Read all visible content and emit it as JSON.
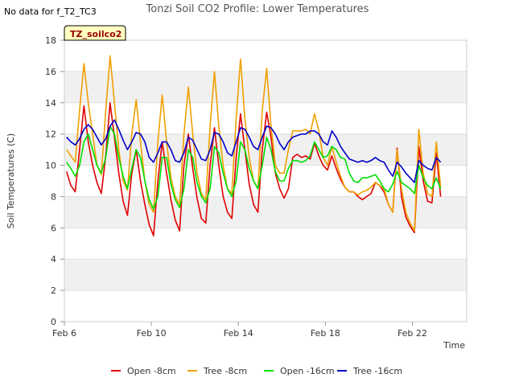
{
  "no_data_note": "No data for f_T2_TC3",
  "chart_data": {
    "type": "line",
    "title": "Tonzi Soil CO2 Profile: Lower Temperatures",
    "xlabel": "Time",
    "ylabel": "Soil Temperatures (C)",
    "badge": "TZ_soilco2",
    "xlim": [
      6.0,
      24.5
    ],
    "ylim": [
      0,
      18
    ],
    "x_ticks": [
      {
        "value": 6,
        "label": "Feb 6"
      },
      {
        "value": 10,
        "label": "Feb 10"
      },
      {
        "value": 14,
        "label": "Feb 14"
      },
      {
        "value": 18,
        "label": "Feb 18"
      },
      {
        "value": 22,
        "label": "Feb 22"
      }
    ],
    "y_ticks": [
      0,
      2,
      4,
      6,
      8,
      10,
      12,
      14,
      16,
      18
    ],
    "grid": true,
    "legend_position": "bottom",
    "colors": {
      "open8": "#e00000",
      "tree8": "#f0a000",
      "open16": "#00e000",
      "tree16": "#0000cc",
      "band": "#f0f0f0",
      "badge_fill": "#ffffc0",
      "badge_text": "#990000"
    },
    "series": [
      {
        "name": "Open -8cm",
        "color": "#e00000",
        "x": [
          6.1,
          6.3,
          6.5,
          6.7,
          6.9,
          7.1,
          7.3,
          7.5,
          7.7,
          7.9,
          8.1,
          8.3,
          8.5,
          8.7,
          8.9,
          9.1,
          9.3,
          9.5,
          9.7,
          9.9,
          10.1,
          10.3,
          10.5,
          10.7,
          10.9,
          11.1,
          11.3,
          11.5,
          11.7,
          11.9,
          12.1,
          12.3,
          12.5,
          12.7,
          12.9,
          13.1,
          13.3,
          13.5,
          13.7,
          13.9,
          14.1,
          14.3,
          14.5,
          14.7,
          14.9,
          15.1,
          15.3,
          15.5,
          15.7,
          15.9,
          16.1,
          16.3,
          16.5,
          16.7,
          16.9,
          17.1,
          17.3,
          17.5,
          17.7,
          17.9,
          18.1,
          18.3,
          18.5,
          18.7,
          18.9,
          19.1,
          19.3,
          19.5,
          19.7,
          19.9,
          20.1,
          20.3,
          20.5,
          20.7,
          20.9,
          21.1,
          21.3,
          21.5,
          21.7,
          21.9,
          22.1,
          22.3,
          22.5,
          22.7,
          22.9,
          23.1,
          23.3
        ],
        "values": [
          9.6,
          8.7,
          8.3,
          11.0,
          13.8,
          11.5,
          10.0,
          8.9,
          8.2,
          10.6,
          14.0,
          11.8,
          9.5,
          7.7,
          6.8,
          9.5,
          11.0,
          9.0,
          7.5,
          6.2,
          5.5,
          9.0,
          11.5,
          9.5,
          7.8,
          6.5,
          5.8,
          10.0,
          12.0,
          9.8,
          7.9,
          6.6,
          6.3,
          10.0,
          12.4,
          10.0,
          8.0,
          7.0,
          6.6,
          10.5,
          13.3,
          11.0,
          8.8,
          7.5,
          7.0,
          11.0,
          13.4,
          11.8,
          9.5,
          8.5,
          7.9,
          8.5,
          10.5,
          10.7,
          10.5,
          10.6,
          10.4,
          11.4,
          10.6,
          10.0,
          9.7,
          10.6,
          9.8,
          9.1,
          8.6,
          8.3,
          8.3,
          8.0,
          7.8,
          8.0,
          8.2,
          8.9,
          8.7,
          8.3,
          7.5,
          7.0,
          11.1,
          8.0,
          6.7,
          6.1,
          5.7,
          11.2,
          9.0,
          7.7,
          7.6,
          10.8,
          8.0
        ]
      },
      {
        "name": "Tree -8cm",
        "color": "#f0a000",
        "x": [
          6.1,
          6.3,
          6.5,
          6.7,
          6.9,
          7.1,
          7.3,
          7.5,
          7.7,
          7.9,
          8.1,
          8.3,
          8.5,
          8.7,
          8.9,
          9.1,
          9.3,
          9.5,
          9.7,
          9.9,
          10.1,
          10.3,
          10.5,
          10.7,
          10.9,
          11.1,
          11.3,
          11.5,
          11.7,
          11.9,
          12.1,
          12.3,
          12.5,
          12.7,
          12.9,
          13.1,
          13.3,
          13.5,
          13.7,
          13.9,
          14.1,
          14.3,
          14.5,
          14.7,
          14.9,
          15.1,
          15.3,
          15.5,
          15.7,
          15.9,
          16.1,
          16.3,
          16.5,
          16.7,
          16.9,
          17.1,
          17.3,
          17.5,
          17.7,
          17.9,
          18.1,
          18.3,
          18.5,
          18.7,
          18.9,
          19.1,
          19.3,
          19.5,
          19.7,
          19.9,
          20.1,
          20.3,
          20.5,
          20.7,
          20.9,
          21.1,
          21.3,
          21.5,
          21.7,
          21.9,
          22.1,
          22.3,
          22.5,
          22.7,
          22.9,
          23.1,
          23.3
        ],
        "values": [
          11.0,
          10.6,
          10.2,
          13.5,
          16.5,
          14.0,
          12.0,
          10.0,
          9.4,
          13.5,
          17.0,
          14.0,
          11.0,
          9.0,
          8.4,
          12.0,
          14.2,
          11.5,
          9.0,
          7.5,
          7.0,
          11.5,
          14.5,
          11.5,
          9.2,
          8.0,
          7.5,
          12.0,
          15.0,
          12.0,
          9.5,
          8.2,
          7.8,
          12.5,
          16.0,
          12.5,
          10.0,
          8.5,
          8.2,
          13.0,
          16.8,
          13.0,
          10.5,
          9.0,
          8.5,
          13.5,
          16.2,
          12.5,
          10.0,
          9.5,
          9.5,
          11.0,
          12.2,
          12.2,
          12.2,
          12.3,
          12.0,
          13.3,
          12.2,
          10.5,
          10.0,
          11.2,
          10.2,
          9.3,
          8.6,
          8.3,
          8.3,
          8.1,
          8.3,
          8.4,
          8.6,
          8.9,
          8.7,
          8.5,
          7.5,
          7.0,
          11.0,
          8.5,
          7.0,
          6.3,
          5.8,
          12.3,
          9.5,
          8.2,
          8.0,
          11.5,
          8.6
        ]
      },
      {
        "name": "Open -16cm",
        "color": "#00e000",
        "x": [
          6.1,
          6.3,
          6.5,
          6.7,
          6.9,
          7.1,
          7.3,
          7.5,
          7.7,
          7.9,
          8.1,
          8.3,
          8.5,
          8.7,
          8.9,
          9.1,
          9.3,
          9.5,
          9.7,
          9.9,
          10.1,
          10.3,
          10.5,
          10.7,
          10.9,
          11.1,
          11.3,
          11.5,
          11.7,
          11.9,
          12.1,
          12.3,
          12.5,
          12.7,
          12.9,
          13.1,
          13.3,
          13.5,
          13.7,
          13.9,
          14.1,
          14.3,
          14.5,
          14.7,
          14.9,
          15.1,
          15.3,
          15.5,
          15.7,
          15.9,
          16.1,
          16.3,
          16.5,
          16.7,
          16.9,
          17.1,
          17.3,
          17.5,
          17.7,
          17.9,
          18.1,
          18.3,
          18.5,
          18.7,
          18.9,
          19.1,
          19.3,
          19.5,
          19.7,
          19.9,
          20.1,
          20.3,
          20.5,
          20.7,
          20.9,
          21.1,
          21.3,
          21.5,
          21.7,
          21.9,
          22.1,
          22.3,
          22.5,
          22.7,
          22.9,
          23.1,
          23.3
        ],
        "values": [
          10.2,
          9.8,
          9.3,
          10.0,
          11.5,
          12.0,
          11.0,
          10.0,
          9.5,
          10.5,
          12.5,
          12.0,
          10.5,
          9.3,
          8.5,
          9.8,
          11.0,
          10.5,
          9.0,
          7.8,
          7.2,
          8.0,
          10.5,
          10.5,
          8.8,
          7.8,
          7.3,
          8.5,
          11.0,
          10.5,
          8.9,
          8.0,
          7.6,
          8.5,
          11.2,
          10.8,
          9.5,
          8.5,
          8.0,
          9.0,
          11.5,
          11.0,
          9.8,
          9.0,
          8.5,
          10.0,
          11.8,
          11.0,
          9.6,
          9.0,
          9.0,
          9.8,
          10.3,
          10.3,
          10.2,
          10.3,
          10.6,
          11.5,
          11.0,
          10.5,
          10.6,
          11.2,
          11.0,
          10.5,
          10.4,
          9.5,
          9.0,
          8.9,
          9.2,
          9.2,
          9.3,
          9.4,
          9.0,
          8.5,
          8.3,
          8.8,
          9.6,
          8.9,
          8.7,
          8.5,
          8.2,
          10.0,
          9.2,
          8.7,
          8.5,
          9.2,
          8.5
        ]
      },
      {
        "name": "Tree -16cm",
        "color": "#0000cc",
        "x": [
          6.1,
          6.3,
          6.5,
          6.7,
          6.9,
          7.1,
          7.3,
          7.5,
          7.7,
          7.9,
          8.1,
          8.3,
          8.5,
          8.7,
          8.9,
          9.1,
          9.3,
          9.5,
          9.7,
          9.9,
          10.1,
          10.3,
          10.5,
          10.7,
          10.9,
          11.1,
          11.3,
          11.5,
          11.7,
          11.9,
          12.1,
          12.3,
          12.5,
          12.7,
          12.9,
          13.1,
          13.3,
          13.5,
          13.7,
          13.9,
          14.1,
          14.3,
          14.5,
          14.7,
          14.9,
          15.1,
          15.3,
          15.5,
          15.7,
          15.9,
          16.1,
          16.3,
          16.5,
          16.7,
          16.9,
          17.1,
          17.3,
          17.5,
          17.7,
          17.9,
          18.1,
          18.3,
          18.5,
          18.7,
          18.9,
          19.1,
          19.3,
          19.5,
          19.7,
          19.9,
          20.1,
          20.3,
          20.5,
          20.7,
          20.9,
          21.1,
          21.3,
          21.5,
          21.7,
          21.9,
          22.1,
          22.3,
          22.5,
          22.7,
          22.9,
          23.1,
          23.3
        ],
        "values": [
          11.8,
          11.5,
          11.3,
          11.7,
          12.3,
          12.6,
          12.3,
          11.8,
          11.3,
          11.7,
          12.5,
          12.9,
          12.3,
          11.6,
          11.0,
          11.5,
          12.1,
          12.0,
          11.5,
          10.5,
          10.2,
          10.8,
          11.5,
          11.5,
          11.0,
          10.3,
          10.2,
          10.8,
          11.8,
          11.6,
          11.0,
          10.4,
          10.3,
          11.0,
          12.1,
          12.0,
          11.5,
          10.8,
          10.6,
          11.5,
          12.4,
          12.3,
          11.8,
          11.2,
          11.0,
          11.8,
          12.5,
          12.4,
          12.0,
          11.4,
          11.0,
          11.5,
          11.8,
          11.9,
          12.0,
          12.0,
          12.2,
          12.2,
          12.0,
          11.5,
          11.3,
          12.2,
          11.8,
          11.2,
          10.8,
          10.4,
          10.3,
          10.2,
          10.3,
          10.2,
          10.3,
          10.5,
          10.3,
          10.2,
          9.7,
          9.3,
          10.2,
          9.9,
          9.5,
          9.2,
          8.9,
          10.3,
          10.0,
          9.8,
          9.7,
          10.5,
          10.2
        ]
      }
    ]
  }
}
